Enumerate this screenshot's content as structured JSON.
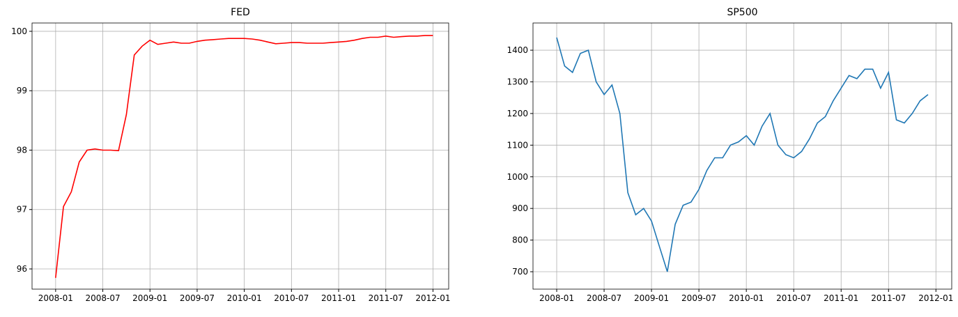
{
  "chart_data": [
    {
      "type": "line",
      "title": "FED",
      "grid": true,
      "x": [
        "2008-01",
        "2008-02",
        "2008-03",
        "2008-04",
        "2008-05",
        "2008-06",
        "2008-07",
        "2008-08",
        "2008-09",
        "2008-10",
        "2008-11",
        "2008-12",
        "2009-01",
        "2009-02",
        "2009-03",
        "2009-04",
        "2009-05",
        "2009-06",
        "2009-07",
        "2009-08",
        "2009-09",
        "2009-10",
        "2009-11",
        "2009-12",
        "2010-01",
        "2010-02",
        "2010-03",
        "2010-04",
        "2010-05",
        "2010-06",
        "2010-07",
        "2010-08",
        "2010-09",
        "2010-10",
        "2010-11",
        "2010-12",
        "2011-01",
        "2011-02",
        "2011-03",
        "2011-04",
        "2011-05",
        "2011-06",
        "2011-07",
        "2011-08",
        "2011-09",
        "2011-10",
        "2011-11",
        "2011-12",
        "2012-01"
      ],
      "series": [
        {
          "name": "FED",
          "color": "#ff0000",
          "values": [
            95.85,
            97.05,
            97.3,
            97.8,
            98.0,
            98.02,
            98.0,
            98.0,
            97.99,
            98.6,
            99.6,
            99.75,
            99.85,
            99.78,
            99.8,
            99.82,
            99.8,
            99.8,
            99.83,
            99.85,
            99.86,
            99.87,
            99.88,
            99.88,
            99.88,
            99.87,
            99.85,
            99.82,
            99.79,
            99.8,
            99.81,
            99.81,
            99.8,
            99.8,
            99.8,
            99.81,
            99.82,
            99.83,
            99.85,
            99.88,
            99.9,
            99.9,
            99.92,
            99.9,
            99.91,
            99.92,
            99.92,
            99.93,
            99.93
          ]
        }
      ],
      "xlim": [
        "2007-10",
        "2012-03"
      ],
      "xticks": [
        "2008-01",
        "2008-07",
        "2009-01",
        "2009-07",
        "2010-01",
        "2010-07",
        "2011-01",
        "2011-07",
        "2012-01"
      ],
      "ylim": [
        95.66,
        100.14
      ],
      "yticks": [
        96,
        97,
        98,
        99,
        100
      ]
    },
    {
      "type": "line",
      "title": "SP500",
      "grid": true,
      "x": [
        "2008-01",
        "2008-02",
        "2008-03",
        "2008-04",
        "2008-05",
        "2008-06",
        "2008-07",
        "2008-08",
        "2008-09",
        "2008-10",
        "2008-11",
        "2008-12",
        "2009-01",
        "2009-02",
        "2009-03",
        "2009-04",
        "2009-05",
        "2009-06",
        "2009-07",
        "2009-08",
        "2009-09",
        "2009-10",
        "2009-11",
        "2009-12",
        "2010-01",
        "2010-02",
        "2010-03",
        "2010-04",
        "2010-05",
        "2010-06",
        "2010-07",
        "2010-08",
        "2010-09",
        "2010-10",
        "2010-11",
        "2010-12",
        "2011-01",
        "2011-02",
        "2011-03",
        "2011-04",
        "2011-05",
        "2011-06",
        "2011-07",
        "2011-08",
        "2011-09",
        "2011-10",
        "2011-11",
        "2011-12"
      ],
      "series": [
        {
          "name": "SP500",
          "color": "#1f77b4",
          "values": [
            1440,
            1350,
            1330,
            1390,
            1400,
            1300,
            1260,
            1290,
            1200,
            950,
            880,
            900,
            860,
            780,
            700,
            850,
            910,
            920,
            960,
            1020,
            1060,
            1060,
            1100,
            1110,
            1130,
            1100,
            1160,
            1200,
            1100,
            1070,
            1060,
            1080,
            1120,
            1170,
            1190,
            1240,
            1280,
            1320,
            1310,
            1340,
            1340,
            1280,
            1330,
            1180,
            1170,
            1200,
            1240,
            1260
          ]
        }
      ],
      "xlim": [
        "2007-10",
        "2012-03"
      ],
      "xticks": [
        "2008-01",
        "2008-07",
        "2009-01",
        "2009-07",
        "2010-01",
        "2010-07",
        "2011-01",
        "2011-07",
        "2012-01"
      ],
      "ylim": [
        645,
        1486
      ],
      "yticks": [
        700,
        800,
        900,
        1000,
        1100,
        1200,
        1300,
        1400
      ]
    }
  ]
}
